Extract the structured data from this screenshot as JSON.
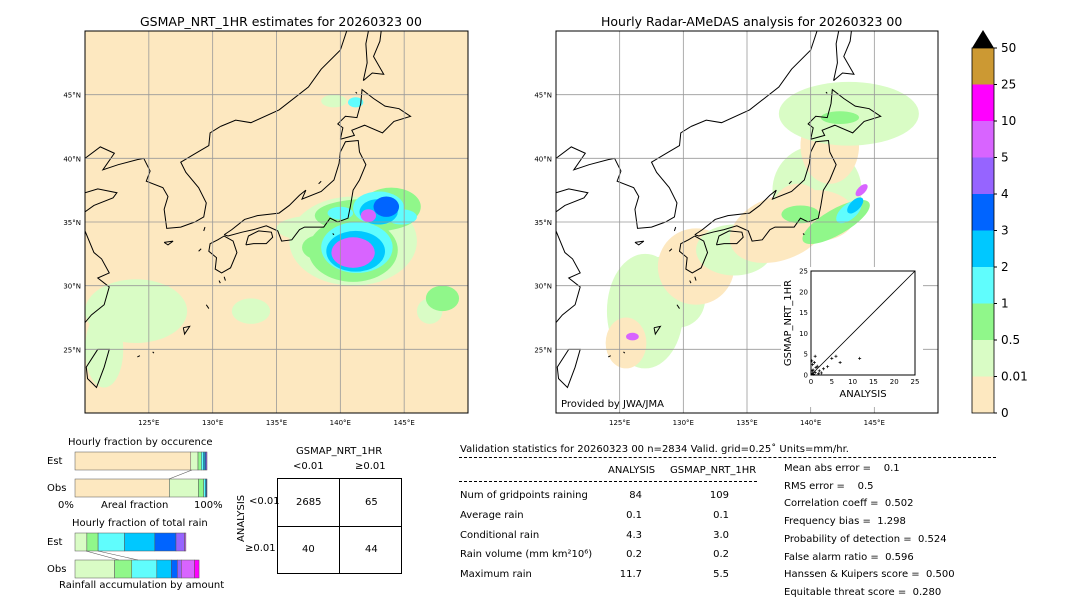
{
  "colors": {
    "ocean_land_bg": "#fde8c0",
    "coast": "#000000",
    "grid": "#888888"
  },
  "maps": [
    {
      "title": "GSMAP_NRT_1HR estimates for 20260323 00",
      "lon_range": [
        120,
        150
      ],
      "lat_range": [
        20,
        50
      ],
      "lon_ticks": [
        "125°E",
        "130°E",
        "135°E",
        "140°E",
        "145°E"
      ],
      "lat_ticks": [
        "45°N",
        "40°N",
        "35°N",
        "30°N",
        "25°N"
      ]
    },
    {
      "title": "Hourly Radar-AMeDAS analysis for 20260323 00",
      "lon_range": [
        120,
        150
      ],
      "lat_range": [
        20,
        50
      ],
      "lon_ticks": [
        "125°E",
        "130°E",
        "135°E",
        "140°E",
        "145°E"
      ],
      "lat_ticks": [
        "45°N",
        "40°N",
        "35°N",
        "30°N",
        "25°N"
      ],
      "credit": "Provided by JWA/JMA"
    }
  ],
  "colorbar": {
    "labels": [
      "0",
      "0.01",
      "0.5",
      "1",
      "2",
      "3",
      "4",
      "5",
      "10",
      "25",
      "50"
    ],
    "colors": [
      "#fde8c0",
      "#d9fcc5",
      "#90f78a",
      "#60fdfd",
      "#00c8ff",
      "#0064ff",
      "#9664ff",
      "#d864ff",
      "#ff00ff",
      "#cc9933"
    ],
    "extend_color": "#000000"
  },
  "scatter": {
    "xlabel": "ANALYSIS",
    "ylabel": "GSMAP_NRT_1HR",
    "ticks": [
      "0",
      "5",
      "10",
      "15",
      "20",
      "25"
    ],
    "range": [
      0,
      25
    ],
    "points": [
      [
        0.3,
        0.4
      ],
      [
        0.5,
        1.2
      ],
      [
        1,
        0.6
      ],
      [
        1.5,
        2.1
      ],
      [
        0.8,
        3
      ],
      [
        2,
        1
      ],
      [
        0.4,
        2.5
      ],
      [
        1.2,
        1.8
      ],
      [
        2.5,
        0.5
      ],
      [
        0.2,
        3.4
      ],
      [
        3,
        1.5
      ],
      [
        1.8,
        0.3
      ],
      [
        0.6,
        0.2
      ],
      [
        5,
        4
      ],
      [
        6,
        4.5
      ],
      [
        7,
        3
      ],
      [
        11.7,
        4
      ],
      [
        4,
        2
      ],
      [
        1,
        4.5
      ],
      [
        0.3,
        1
      ]
    ]
  },
  "occurrence": {
    "title": "Hourly fraction by occurence",
    "rows": [
      "Est",
      "Obs"
    ],
    "xlabel": "Areal fraction",
    "x_left": "0%",
    "x_right": "100%",
    "est": [
      0.877,
      0.055,
      0.025,
      0.015,
      0.012,
      0.008,
      0.008
    ],
    "obs": [
      0.715,
      0.22,
      0.04,
      0.012,
      0.008,
      0.005
    ]
  },
  "total_rain": {
    "title": "Hourly fraction of total rain",
    "rows": [
      "Est",
      "Obs"
    ],
    "xlabel": "Rainfall accumulation by amount",
    "est": [
      0.09,
      0.085,
      0.2,
      0.23,
      0.16,
      0.065,
      0.01
    ],
    "obs": [
      0.3,
      0.13,
      0.19,
      0.11,
      0.045,
      0.03,
      0.1,
      0.035
    ]
  },
  "contingency": {
    "title": "GSMAP_NRT_1HR",
    "col_labels": [
      "<0.01",
      "≥0.01"
    ],
    "row_axis": "ANALYSIS",
    "row_labels": [
      "<0.01",
      "≥0.01"
    ],
    "cells": [
      [
        "2685",
        "65"
      ],
      [
        "40",
        "44"
      ]
    ]
  },
  "stats": {
    "header": "Validation statistics for 20260323 00  n=2834 Valid. grid=0.25˚ Units=mm/hr.",
    "columns": [
      "ANALYSIS",
      "GSMAP_NRT_1HR"
    ],
    "rows": [
      {
        "label": "Num of gridpoints raining",
        "a": "84",
        "g": "109"
      },
      {
        "label": "Average rain",
        "a": "0.1",
        "g": "0.1"
      },
      {
        "label": "Conditional rain",
        "a": "4.3",
        "g": "3.0"
      },
      {
        "label": "Rain volume (mm km²10⁶)",
        "a": "0.2",
        "g": "0.2"
      },
      {
        "label": "Maximum rain",
        "a": "11.7",
        "g": "5.5"
      }
    ],
    "scores": [
      "Mean abs error =    0.1",
      "RMS error =    0.5",
      "Correlation coeff =  0.502",
      "Frequency bias =  1.298",
      "Probability of detection =  0.524",
      "False alarm ratio =  0.596",
      "Hanssen & Kuipers score =  0.500",
      "Equitable threat score =  0.280"
    ]
  }
}
